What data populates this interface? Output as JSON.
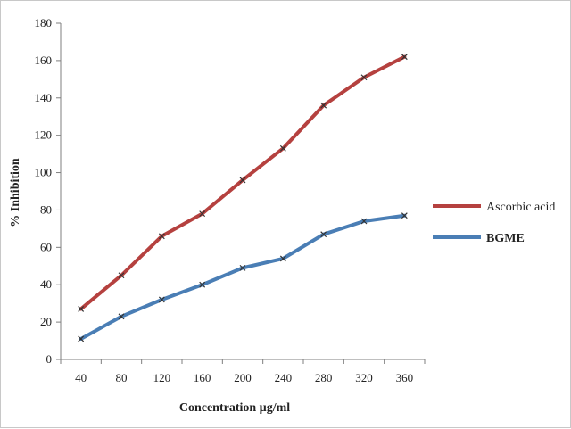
{
  "chart_data": {
    "type": "line",
    "title": "",
    "xlabel": "Concentration µg/ml",
    "ylabel": "% Inhibition",
    "categories": [
      "40",
      "80",
      "120",
      "160",
      "200",
      "240",
      "280",
      "320",
      "360"
    ],
    "ylim": [
      0,
      180
    ],
    "yticks": [
      "0",
      "20",
      "40",
      "60",
      "80",
      "100",
      "120",
      "140",
      "160",
      "180"
    ],
    "grid": false,
    "legend_position": "right",
    "series": [
      {
        "name": "Ascorbic acid",
        "color": "#b5413f",
        "values": [
          27,
          45,
          66,
          78,
          96,
          113,
          136,
          151,
          162
        ]
      },
      {
        "name": "BGME",
        "color": "#4a7eb5",
        "values": [
          11,
          23,
          32,
          40,
          49,
          54,
          67,
          74,
          77
        ]
      }
    ]
  }
}
